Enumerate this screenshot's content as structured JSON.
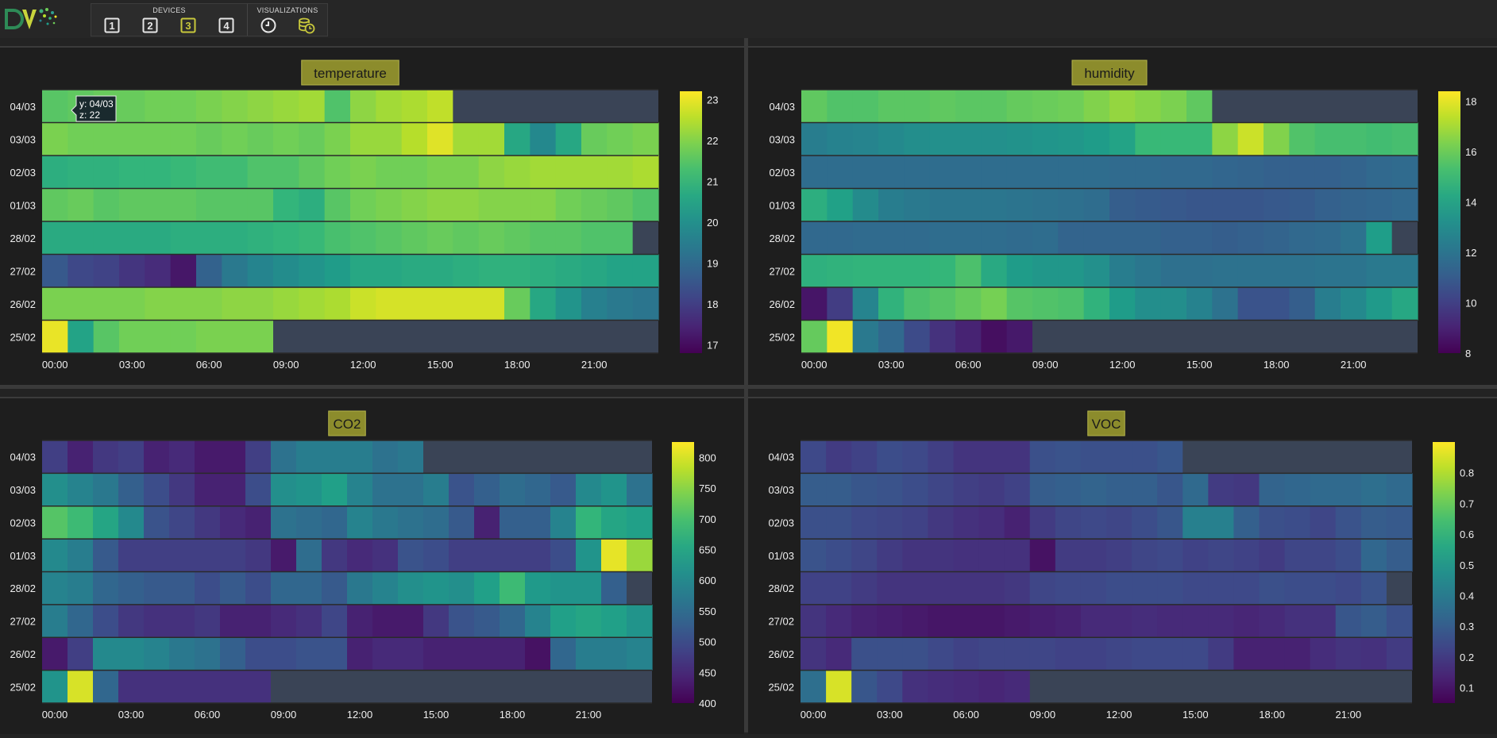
{
  "toolbar": {
    "devices_label": "DEVICES",
    "visualizations_label": "VISUALIZATIONS",
    "device_buttons": [
      "1",
      "2",
      "3",
      "4"
    ],
    "active_device": "3",
    "visualization_buttons": [
      {
        "name": "clock-icon",
        "active": false
      },
      {
        "name": "database-clock-icon",
        "active": true
      }
    ]
  },
  "colors": {
    "accent": "#c8c83c",
    "empty_cell": "#3a4456",
    "title_bg": "#8c8c2c",
    "viridis": [
      "#440154",
      "#482878",
      "#3e4989",
      "#31688e",
      "#26828e",
      "#1f9e89",
      "#35b779",
      "#6ece58",
      "#b5de2b",
      "#fde725"
    ]
  },
  "tooltip": {
    "line1": "y: 04/03",
    "line2": "z: 22"
  },
  "chart_data": [
    {
      "type": "heatmap",
      "title": "temperature",
      "y_categories": [
        "04/03",
        "03/03",
        "02/03",
        "01/03",
        "28/02",
        "27/02",
        "26/02",
        "25/02"
      ],
      "x_hours": [
        0,
        1,
        2,
        3,
        4,
        5,
        6,
        7,
        8,
        9,
        10,
        11,
        12,
        13,
        14,
        15,
        16,
        17,
        18,
        19,
        20,
        21,
        22,
        23
      ],
      "x_tick_labels": [
        "00:00",
        "03:00",
        "06:00",
        "09:00",
        "12:00",
        "15:00",
        "18:00",
        "21:00"
      ],
      "z": [
        [
          21.5,
          21.6,
          21.7,
          21.7,
          21.8,
          21.8,
          21.9,
          22,
          22.1,
          22.2,
          22.3,
          21.4,
          22.1,
          22.3,
          22.4,
          22.6,
          null,
          null,
          null,
          null,
          null,
          null,
          null,
          null
        ],
        [
          21.9,
          21.8,
          21.8,
          21.8,
          21.8,
          21.8,
          21.7,
          21.8,
          21.7,
          21.8,
          21.7,
          21.9,
          22.2,
          22.2,
          22.5,
          22.9,
          22.3,
          22.3,
          20.6,
          19.8,
          20.6,
          21.7,
          21.8,
          21.9
        ],
        [
          20.8,
          20.9,
          20.9,
          21,
          21,
          21.1,
          21.2,
          21.2,
          21.4,
          21.4,
          21.6,
          21.8,
          21.9,
          21.8,
          21.8,
          21.9,
          21.9,
          22.1,
          22.2,
          22.3,
          22.3,
          22.3,
          22.3,
          22.4
        ],
        [
          21.6,
          21.7,
          21.5,
          21.6,
          21.6,
          21.6,
          21.5,
          21.5,
          21.5,
          21,
          20.8,
          21.5,
          21.8,
          21.9,
          22,
          22.1,
          22.1,
          22,
          22,
          22,
          21.8,
          21.7,
          21.6,
          21.4
        ],
        [
          20.7,
          20.7,
          20.7,
          20.7,
          20.7,
          20.8,
          20.8,
          20.8,
          20.9,
          21,
          21.1,
          21.3,
          21.4,
          21.5,
          21.6,
          21.7,
          21.6,
          21.7,
          21.6,
          21.5,
          21.5,
          21.4,
          21.4,
          null
        ],
        [
          18.6,
          18.2,
          18.1,
          17.8,
          17.6,
          17.2,
          18.8,
          19.4,
          19.7,
          19.9,
          20.1,
          20.3,
          20.6,
          20.6,
          20.7,
          20.7,
          20.8,
          20.9,
          20.9,
          20.8,
          20.7,
          20.6,
          20.5,
          20.5
        ],
        [
          21.9,
          21.9,
          21.9,
          21.9,
          22,
          22,
          22,
          22.1,
          22.1,
          22.2,
          22.3,
          22.4,
          22.7,
          22.8,
          22.8,
          22.8,
          22.8,
          22.8,
          21.7,
          20.6,
          20.1,
          19.6,
          19.4,
          19.3
        ],
        [
          23,
          20.5,
          21.5,
          21.8,
          21.8,
          21.8,
          21.9,
          21.9,
          21.9,
          null,
          null,
          null,
          null,
          null,
          null,
          null,
          null,
          null,
          null,
          null,
          null,
          null,
          null,
          null
        ]
      ],
      "zmin": 16.8,
      "zmax": 23.2,
      "colorbar_ticks": [
        17,
        18,
        19,
        20,
        21,
        22,
        23
      ]
    },
    {
      "type": "heatmap",
      "title": "humidity",
      "y_categories": [
        "04/03",
        "03/03",
        "02/03",
        "01/03",
        "28/02",
        "27/02",
        "26/02",
        "25/02"
      ],
      "x_hours": [
        0,
        1,
        2,
        3,
        4,
        5,
        6,
        7,
        8,
        9,
        10,
        11,
        12,
        13,
        14,
        15,
        16,
        17,
        18,
        19,
        20,
        21,
        22,
        23
      ],
      "x_tick_labels": [
        "00:00",
        "03:00",
        "06:00",
        "09:00",
        "12:00",
        "15:00",
        "18:00",
        "21:00"
      ],
      "z": [
        [
          15.8,
          15.5,
          15.5,
          15.7,
          15.7,
          15.8,
          15.7,
          15.7,
          15.9,
          16,
          16.1,
          16.4,
          16.7,
          16.5,
          16.3,
          15.8,
          null,
          null,
          null,
          null,
          null,
          null,
          null,
          null
        ],
        [
          12.4,
          12.6,
          12.7,
          12.9,
          13.1,
          13.2,
          13.2,
          13.2,
          13.3,
          13.4,
          13.5,
          13.7,
          14,
          15,
          15,
          15,
          16.6,
          17.6,
          16.4,
          15.5,
          15.3,
          15.3,
          15.2,
          15.3
        ],
        [
          11.7,
          11.7,
          11.7,
          11.7,
          11.7,
          11.7,
          11.7,
          11.7,
          11.7,
          11.7,
          11.7,
          11.7,
          11.6,
          11.6,
          11.5,
          11.5,
          11.4,
          11.3,
          11.2,
          11.2,
          11.2,
          11.3,
          11.5,
          11.6
        ],
        [
          14.5,
          13.9,
          13,
          12.4,
          12.2,
          12.1,
          12.1,
          12.1,
          12,
          11.9,
          11.8,
          11.7,
          11.1,
          11,
          10.9,
          10.8,
          10.8,
          10.8,
          10.9,
          11,
          11.2,
          11.3,
          11.4,
          11.5
        ],
        [
          11.5,
          11.5,
          11.6,
          11.6,
          11.6,
          11.7,
          11.7,
          11.7,
          11.6,
          11.7,
          11.3,
          11.3,
          11.3,
          11.3,
          11.2,
          11.2,
          11.1,
          11.2,
          11.3,
          11.5,
          11.6,
          11.9,
          13.8,
          null
        ],
        [
          14.6,
          14.7,
          14.8,
          14.8,
          14.8,
          14.9,
          15.4,
          14.3,
          13.7,
          13.5,
          13.5,
          13.2,
          12.4,
          12.1,
          11.8,
          11.8,
          11.9,
          11.9,
          11.9,
          11.9,
          12,
          12,
          12.2,
          12.2
        ],
        [
          8.6,
          9.9,
          12.7,
          14.7,
          15.4,
          15.6,
          15.9,
          16.2,
          15.6,
          15.5,
          15.4,
          14.7,
          13.7,
          13.1,
          13.1,
          12.6,
          11.9,
          10.7,
          10.7,
          11.1,
          12.4,
          12.9,
          13.6,
          14.2
        ],
        [
          15.9,
          18.2,
          12.2,
          11.5,
          10.4,
          9.5,
          9,
          8.4,
          8.7,
          null,
          null,
          null,
          null,
          null,
          null,
          null,
          null,
          null,
          null,
          null,
          null,
          null,
          null,
          null
        ]
      ],
      "zmin": 8,
      "zmax": 18.4,
      "colorbar_ticks": [
        8,
        10,
        12,
        14,
        16,
        18
      ]
    },
    {
      "type": "heatmap",
      "title": "CO2",
      "y_categories": [
        "04/03",
        "03/03",
        "02/03",
        "01/03",
        "28/02",
        "27/02",
        "26/02",
        "25/02"
      ],
      "x_hours": [
        0,
        1,
        2,
        3,
        4,
        5,
        6,
        7,
        8,
        9,
        10,
        11,
        12,
        13,
        14,
        15,
        16,
        17,
        18,
        19,
        20,
        21,
        22,
        23
      ],
      "x_tick_labels": [
        "00:00",
        "03:00",
        "06:00",
        "09:00",
        "12:00",
        "15:00",
        "18:00",
        "21:00"
      ],
      "z": [
        [
          480,
          440,
          470,
          480,
          440,
          450,
          430,
          430,
          480,
          560,
          580,
          580,
          580,
          560,
          570,
          null,
          null,
          null,
          null,
          null,
          null,
          null,
          null,
          null
        ],
        [
          610,
          590,
          570,
          530,
          500,
          470,
          440,
          440,
          500,
          610,
          620,
          640,
          590,
          560,
          560,
          580,
          510,
          530,
          550,
          540,
          520,
          600,
          620,
          560
        ],
        [
          710,
          690,
          650,
          600,
          510,
          490,
          470,
          450,
          440,
          560,
          550,
          540,
          590,
          570,
          560,
          550,
          520,
          440,
          530,
          530,
          590,
          680,
          650,
          640
        ],
        [
          600,
          580,
          520,
          480,
          480,
          480,
          480,
          480,
          470,
          430,
          550,
          470,
          450,
          460,
          510,
          500,
          480,
          480,
          480,
          480,
          500,
          620,
          810,
          760
        ],
        [
          590,
          580,
          540,
          530,
          520,
          520,
          500,
          520,
          500,
          540,
          540,
          520,
          570,
          590,
          610,
          620,
          610,
          640,
          690,
          630,
          620,
          620,
          530,
          null
        ],
        [
          580,
          540,
          500,
          470,
          460,
          460,
          470,
          440,
          440,
          450,
          460,
          490,
          440,
          430,
          430,
          470,
          510,
          520,
          540,
          590,
          640,
          650,
          640,
          620
        ],
        [
          430,
          480,
          600,
          600,
          590,
          570,
          560,
          530,
          500,
          500,
          510,
          510,
          440,
          450,
          450,
          440,
          440,
          440,
          440,
          420,
          540,
          580,
          580,
          590
        ],
        [
          620,
          800,
          540,
          460,
          460,
          460,
          460,
          460,
          460,
          null,
          null,
          null,
          null,
          null,
          null,
          null,
          null,
          null,
          null,
          null,
          null,
          null,
          null,
          null
        ]
      ],
      "zmin": 400,
      "zmax": 825,
      "colorbar_ticks": [
        400,
        450,
        500,
        550,
        600,
        650,
        700,
        750,
        800
      ]
    },
    {
      "type": "heatmap",
      "title": "VOC",
      "y_categories": [
        "04/03",
        "03/03",
        "02/03",
        "01/03",
        "28/02",
        "27/02",
        "26/02",
        "25/02"
      ],
      "x_hours": [
        0,
        1,
        2,
        3,
        4,
        5,
        6,
        7,
        8,
        9,
        10,
        11,
        12,
        13,
        14,
        15,
        16,
        17,
        18,
        19,
        20,
        21,
        22,
        23
      ],
      "x_tick_labels": [
        "00:00",
        "03:00",
        "06:00",
        "09:00",
        "12:00",
        "15:00",
        "18:00",
        "21:00"
      ],
      "z": [
        [
          0.24,
          0.2,
          0.22,
          0.25,
          0.24,
          0.21,
          0.18,
          0.18,
          0.18,
          0.26,
          0.27,
          0.26,
          0.26,
          0.26,
          0.28,
          null,
          null,
          null,
          null,
          null,
          null,
          null,
          null,
          null
        ],
        [
          0.3,
          0.3,
          0.28,
          0.27,
          0.25,
          0.23,
          0.21,
          0.2,
          0.22,
          0.3,
          0.31,
          0.32,
          0.31,
          0.31,
          0.28,
          0.34,
          0.2,
          0.19,
          0.32,
          0.33,
          0.34,
          0.34,
          0.36,
          0.34
        ],
        [
          0.26,
          0.26,
          0.24,
          0.23,
          0.22,
          0.19,
          0.17,
          0.16,
          0.13,
          0.2,
          0.23,
          0.24,
          0.23,
          0.25,
          0.28,
          0.42,
          0.42,
          0.31,
          0.26,
          0.25,
          0.23,
          0.27,
          0.3,
          0.29
        ],
        [
          0.27,
          0.25,
          0.23,
          0.2,
          0.18,
          0.18,
          0.17,
          0.17,
          0.17,
          0.09,
          0.2,
          0.2,
          0.21,
          0.23,
          0.24,
          0.22,
          0.23,
          0.22,
          0.2,
          0.23,
          0.23,
          0.25,
          0.33,
          0.3
        ],
        [
          0.22,
          0.22,
          0.2,
          0.18,
          0.18,
          0.18,
          0.18,
          0.18,
          0.19,
          0.23,
          0.24,
          0.24,
          0.25,
          0.25,
          0.25,
          0.24,
          0.24,
          0.24,
          0.26,
          0.25,
          0.25,
          0.24,
          0.27,
          null
        ],
        [
          0.18,
          0.15,
          0.13,
          0.12,
          0.11,
          0.1,
          0.1,
          0.1,
          0.11,
          0.12,
          0.13,
          0.15,
          0.15,
          0.16,
          0.15,
          0.15,
          0.15,
          0.14,
          0.15,
          0.17,
          0.17,
          0.28,
          0.3,
          0.26
        ],
        [
          0.18,
          0.15,
          0.26,
          0.26,
          0.26,
          0.24,
          0.22,
          0.23,
          0.23,
          0.23,
          0.22,
          0.22,
          0.23,
          0.24,
          0.24,
          0.24,
          0.2,
          0.13,
          0.13,
          0.13,
          0.16,
          0.18,
          0.17,
          0.2
        ],
        [
          0.36,
          0.85,
          0.28,
          0.24,
          0.17,
          0.16,
          0.15,
          0.14,
          0.15,
          null,
          null,
          null,
          null,
          null,
          null,
          null,
          null,
          null,
          null,
          null,
          null,
          null,
          null,
          null
        ]
      ],
      "zmin": 0.05,
      "zmax": 0.9,
      "colorbar_ticks": [
        0.1,
        0.2,
        0.3,
        0.4,
        0.5,
        0.6,
        0.7,
        0.8
      ]
    }
  ]
}
